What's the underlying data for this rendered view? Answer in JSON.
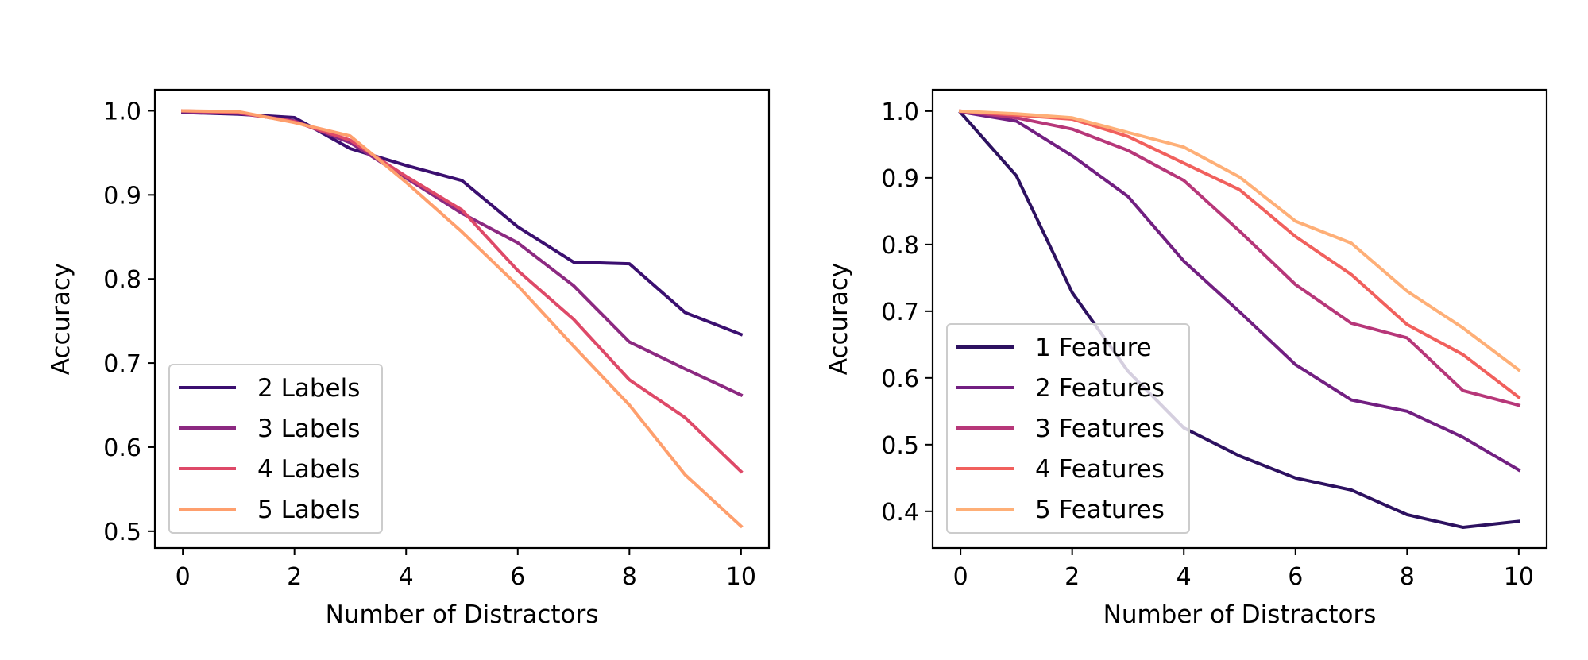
{
  "chart_data": [
    {
      "type": "line",
      "title": "",
      "xlabel": "Number of Distractors",
      "ylabel": "Accuracy",
      "xlim": [
        -0.5,
        10.5
      ],
      "ylim": [
        0.48,
        1.025
      ],
      "xticks": [
        0,
        2,
        4,
        6,
        8,
        10
      ],
      "xtick_labels": [
        "0",
        "2",
        "4",
        "6",
        "8",
        "10"
      ],
      "yticks": [
        0.5,
        0.6,
        0.7,
        0.8,
        0.9,
        1.0
      ],
      "ytick_labels": [
        "0.5",
        "0.6",
        "0.7",
        "0.8",
        "0.9",
        "1.0"
      ],
      "grid": false,
      "legend_position": "lower-left",
      "x": [
        0,
        1,
        2,
        3,
        4,
        5,
        6,
        7,
        8,
        9,
        10
      ],
      "series": [
        {
          "name": "2 Labels",
          "color": "#3b0f70",
          "values": [
            0.998,
            0.996,
            0.992,
            0.955,
            0.935,
            0.917,
            0.862,
            0.82,
            0.818,
            0.76,
            0.734
          ]
        },
        {
          "name": "3 Labels",
          "color": "#8c2981",
          "values": [
            0.999,
            0.997,
            0.988,
            0.962,
            0.92,
            0.878,
            0.843,
            0.792,
            0.725,
            0.693,
            0.662
          ]
        },
        {
          "name": "4 Labels",
          "color": "#de4968",
          "values": [
            1.0,
            0.998,
            0.987,
            0.965,
            0.922,
            0.882,
            0.81,
            0.752,
            0.68,
            0.635,
            0.571
          ]
        },
        {
          "name": "5 Labels",
          "color": "#fe9f6d",
          "values": [
            1.0,
            0.999,
            0.986,
            0.97,
            0.915,
            0.856,
            0.792,
            0.72,
            0.65,
            0.567,
            0.506
          ]
        }
      ]
    },
    {
      "type": "line",
      "title": "",
      "xlabel": "Number of Distractors",
      "ylabel": "Accuracy",
      "xlim": [
        -0.5,
        10.5
      ],
      "ylim": [
        0.345,
        1.032
      ],
      "xticks": [
        0,
        2,
        4,
        6,
        8,
        10
      ],
      "xtick_labels": [
        "0",
        "2",
        "4",
        "6",
        "8",
        "10"
      ],
      "yticks": [
        0.4,
        0.5,
        0.6,
        0.7,
        0.8,
        0.9,
        1.0
      ],
      "ytick_labels": [
        "0.4",
        "0.5",
        "0.6",
        "0.7",
        "0.8",
        "0.9",
        "1.0"
      ],
      "grid": false,
      "legend_position": "lower-left",
      "x": [
        0,
        1,
        2,
        3,
        4,
        5,
        6,
        7,
        8,
        9,
        10
      ],
      "series": [
        {
          "name": "1 Feature",
          "color": "#2d1160",
          "values": [
            0.998,
            0.903,
            0.728,
            0.61,
            0.525,
            0.483,
            0.45,
            0.432,
            0.395,
            0.376,
            0.385
          ]
        },
        {
          "name": "2 Features",
          "color": "#721f81",
          "values": [
            0.999,
            0.985,
            0.933,
            0.872,
            0.775,
            0.699,
            0.62,
            0.567,
            0.55,
            0.511,
            0.462
          ]
        },
        {
          "name": "3 Features",
          "color": "#b73779",
          "values": [
            1.0,
            0.99,
            0.973,
            0.941,
            0.896,
            0.82,
            0.74,
            0.682,
            0.66,
            0.581,
            0.559
          ]
        },
        {
          "name": "4 Features",
          "color": "#f1605d",
          "values": [
            1.0,
            0.994,
            0.988,
            0.962,
            0.922,
            0.882,
            0.812,
            0.755,
            0.68,
            0.635,
            0.571
          ]
        },
        {
          "name": "5 Features",
          "color": "#feaf77",
          "values": [
            1.0,
            0.996,
            0.99,
            0.968,
            0.946,
            0.901,
            0.835,
            0.802,
            0.73,
            0.675,
            0.612
          ]
        }
      ]
    }
  ]
}
